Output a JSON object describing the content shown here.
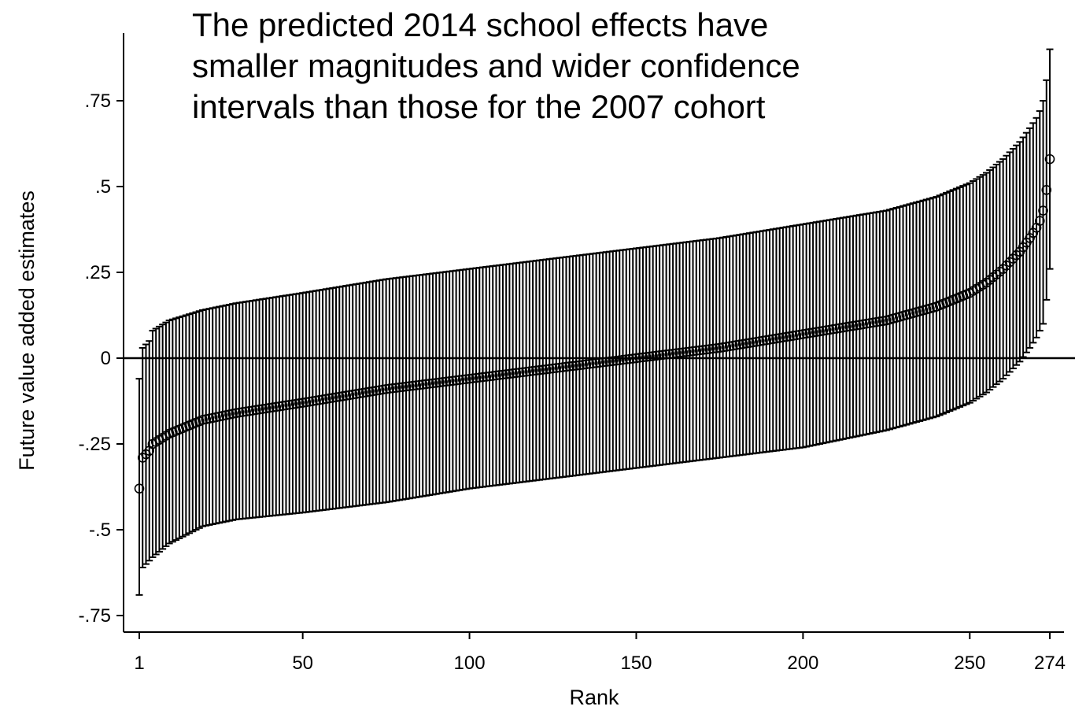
{
  "chart_data": {
    "type": "scatter",
    "subtype": "ranked estimates with confidence interval error bars",
    "annotation": [
      "The predicted 2014 school effects have",
      "smaller magnitudes and wider confidence",
      "intervals than those for the 2007 cohort"
    ],
    "xlabel": "Rank",
    "ylabel": "Future value added estimates",
    "xlim": [
      1,
      274
    ],
    "ylim": [
      -0.75,
      0.93
    ],
    "x_ticks": [
      1,
      50,
      100,
      150,
      200,
      250,
      274
    ],
    "x_tick_labels": [
      "1",
      "50",
      "100",
      "150",
      "200",
      "250",
      "274"
    ],
    "y_ticks": [
      -0.75,
      -0.5,
      -0.25,
      0,
      0.25,
      0.5,
      0.75
    ],
    "y_tick_labels": [
      "-.75",
      "-.5",
      "-.25",
      "0",
      ".25",
      ".5",
      ".75"
    ],
    "reference_line_y": 0,
    "n_schools": 274,
    "legend": "none",
    "grid": false,
    "colors": {
      "marker": "#000000",
      "bars": "#000000",
      "background": "#ffffff"
    },
    "points": [
      {
        "rank": 1,
        "estimate": -0.38,
        "ci_low": -0.69,
        "ci_high": -0.06
      },
      {
        "rank": 2,
        "estimate": -0.29,
        "ci_low": -0.61,
        "ci_high": 0.03
      },
      {
        "rank": 3,
        "estimate": -0.28,
        "ci_low": -0.6,
        "ci_high": 0.04
      },
      {
        "rank": 4,
        "estimate": -0.27,
        "ci_low": -0.59,
        "ci_high": 0.05
      },
      {
        "rank": 5,
        "estimate": -0.25,
        "ci_low": -0.58,
        "ci_high": 0.08
      },
      {
        "rank": 10,
        "estimate": -0.22,
        "ci_low": -0.54,
        "ci_high": 0.11
      },
      {
        "rank": 20,
        "estimate": -0.18,
        "ci_low": -0.49,
        "ci_high": 0.14
      },
      {
        "rank": 30,
        "estimate": -0.16,
        "ci_low": -0.47,
        "ci_high": 0.16
      },
      {
        "rank": 50,
        "estimate": -0.13,
        "ci_low": -0.45,
        "ci_high": 0.19
      },
      {
        "rank": 75,
        "estimate": -0.09,
        "ci_low": -0.42,
        "ci_high": 0.23
      },
      {
        "rank": 100,
        "estimate": -0.06,
        "ci_low": -0.38,
        "ci_high": 0.26
      },
      {
        "rank": 125,
        "estimate": -0.03,
        "ci_low": -0.35,
        "ci_high": 0.29
      },
      {
        "rank": 150,
        "estimate": 0.0,
        "ci_low": -0.32,
        "ci_high": 0.32
      },
      {
        "rank": 175,
        "estimate": 0.03,
        "ci_low": -0.29,
        "ci_high": 0.35
      },
      {
        "rank": 200,
        "estimate": 0.07,
        "ci_low": -0.26,
        "ci_high": 0.39
      },
      {
        "rank": 225,
        "estimate": 0.11,
        "ci_low": -0.21,
        "ci_high": 0.43
      },
      {
        "rank": 240,
        "estimate": 0.15,
        "ci_low": -0.17,
        "ci_high": 0.47
      },
      {
        "rank": 250,
        "estimate": 0.19,
        "ci_low": -0.13,
        "ci_high": 0.51
      },
      {
        "rank": 255,
        "estimate": 0.22,
        "ci_low": -0.1,
        "ci_high": 0.54
      },
      {
        "rank": 260,
        "estimate": 0.26,
        "ci_low": -0.06,
        "ci_high": 0.58
      },
      {
        "rank": 265,
        "estimate": 0.31,
        "ci_low": -0.01,
        "ci_high": 0.63
      },
      {
        "rank": 268,
        "estimate": 0.35,
        "ci_low": 0.03,
        "ci_high": 0.67
      },
      {
        "rank": 270,
        "estimate": 0.38,
        "ci_low": 0.06,
        "ci_high": 0.7
      },
      {
        "rank": 271,
        "estimate": 0.4,
        "ci_low": 0.08,
        "ci_high": 0.72
      },
      {
        "rank": 272,
        "estimate": 0.43,
        "ci_low": 0.1,
        "ci_high": 0.75
      },
      {
        "rank": 273,
        "estimate": 0.49,
        "ci_low": 0.17,
        "ci_high": 0.81
      },
      {
        "rank": 274,
        "estimate": 0.58,
        "ci_low": 0.26,
        "ci_high": 0.9
      }
    ]
  }
}
